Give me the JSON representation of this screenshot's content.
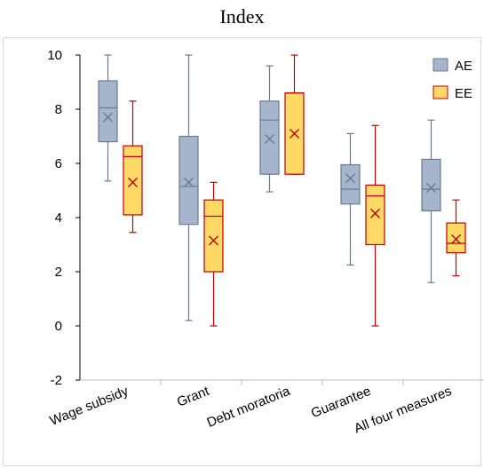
{
  "page": {
    "title": "Index"
  },
  "chart_data": {
    "type": "box",
    "title": "Index",
    "categories": [
      "Wage subsidy",
      "Grant",
      "Debt moratoria",
      "Guarantee",
      "All four measures"
    ],
    "ylim": [
      -2,
      10
    ],
    "yticks": [
      -2,
      0,
      2,
      4,
      6,
      8,
      10
    ],
    "grid": false,
    "legend_position": "top-right",
    "series": [
      {
        "name": "AE",
        "color": "#a6b4cc",
        "stroke": "#6b7a94",
        "boxes": [
          {
            "min": 5.35,
            "q1": 6.8,
            "median": 8.05,
            "q3": 9.05,
            "max": 10.0,
            "mean": 7.7
          },
          {
            "min": 0.2,
            "q1": 3.75,
            "median": 5.15,
            "q3": 7.0,
            "max": 10.0,
            "mean": 5.3
          },
          {
            "min": 4.95,
            "q1": 5.6,
            "median": 7.6,
            "q3": 8.3,
            "max": 9.6,
            "mean": 6.9
          },
          {
            "min": 2.25,
            "q1": 4.5,
            "median": 5.05,
            "q3": 5.95,
            "max": 7.1,
            "mean": 5.45
          },
          {
            "min": 1.6,
            "q1": 4.25,
            "median": 5.05,
            "q3": 6.15,
            "max": 7.6,
            "mean": 5.1
          }
        ]
      },
      {
        "name": "EE",
        "color": "#ffd966",
        "stroke": "#c00000",
        "boxes": [
          {
            "min": 3.45,
            "q1": 4.1,
            "median": 6.25,
            "q3": 6.65,
            "max": 8.3,
            "mean": 5.3
          },
          {
            "min": 0.0,
            "q1": 2.0,
            "median": 4.05,
            "q3": 4.65,
            "max": 5.3,
            "mean": 3.15
          },
          {
            "min": 5.6,
            "q1": 5.6,
            "median": 8.6,
            "q3": 8.6,
            "max": 10.0,
            "mean": 7.1
          },
          {
            "min": 0.0,
            "q1": 3.0,
            "median": 4.8,
            "q3": 5.2,
            "max": 7.4,
            "mean": 4.15
          },
          {
            "min": 1.85,
            "q1": 2.7,
            "median": 3.05,
            "q3": 3.8,
            "max": 4.65,
            "mean": 3.2
          }
        ]
      }
    ]
  }
}
